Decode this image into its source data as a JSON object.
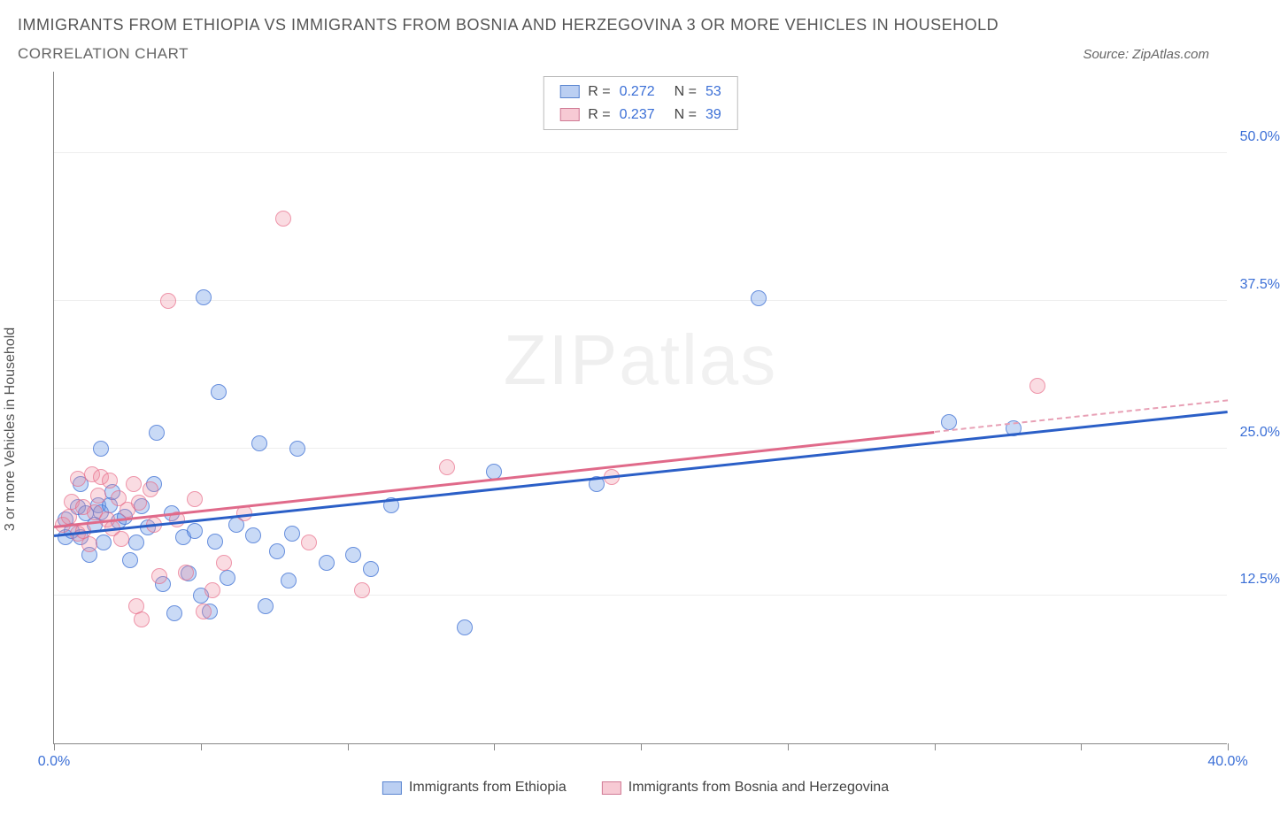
{
  "title": "IMMIGRANTS FROM ETHIOPIA VS IMMIGRANTS FROM BOSNIA AND HERZEGOVINA 3 OR MORE VEHICLES IN HOUSEHOLD",
  "subtitle": "CORRELATION CHART",
  "source_label": "Source: ZipAtlas.com",
  "y_axis_label": "3 or more Vehicles in Household",
  "watermark_a": "ZIP",
  "watermark_b": "atlas",
  "chart": {
    "type": "scatter",
    "xlim": [
      0,
      40
    ],
    "ylim": [
      0,
      57
    ],
    "x_ticks": [
      0,
      5,
      10,
      15,
      20,
      25,
      30,
      35,
      40
    ],
    "x_tick_labels": {
      "0": "0.0%",
      "40": "40.0%"
    },
    "y_ticks": [
      12.5,
      25.0,
      37.5,
      50.0
    ],
    "y_tick_labels": [
      "12.5%",
      "25.0%",
      "37.5%",
      "50.0%"
    ],
    "grid_color": "#eeeeee",
    "axis_color": "#888888",
    "background_color": "#ffffff",
    "marker_radius": 9,
    "series": [
      {
        "key": "blue",
        "name": "Immigrants from Ethiopia",
        "fill": "rgba(100,150,230,0.35)",
        "stroke": "rgba(60,110,210,0.7)",
        "trend_color": "#2b5fc7",
        "R": "0.272",
        "N": "53",
        "trend": {
          "x1": 0,
          "y1": 17.5,
          "x2": 40,
          "y2": 28.0,
          "solid_to_x": 40
        },
        "points": [
          [
            0.4,
            19.0
          ],
          [
            0.4,
            17.5
          ],
          [
            0.6,
            18.0
          ],
          [
            0.8,
            20.0
          ],
          [
            0.9,
            22.0
          ],
          [
            0.9,
            17.5
          ],
          [
            1.1,
            19.5
          ],
          [
            1.2,
            16.0
          ],
          [
            1.4,
            18.5
          ],
          [
            1.5,
            20.2
          ],
          [
            1.6,
            25.0
          ],
          [
            1.7,
            17.0
          ],
          [
            1.6,
            19.6
          ],
          [
            1.9,
            20.2
          ],
          [
            2.0,
            21.3
          ],
          [
            2.2,
            18.8
          ],
          [
            2.4,
            19.2
          ],
          [
            2.6,
            15.5
          ],
          [
            2.8,
            17.0
          ],
          [
            3.0,
            20.1
          ],
          [
            3.2,
            18.3
          ],
          [
            3.4,
            22.0
          ],
          [
            3.5,
            26.3
          ],
          [
            3.7,
            13.5
          ],
          [
            4.0,
            19.5
          ],
          [
            4.1,
            11.0
          ],
          [
            4.4,
            17.5
          ],
          [
            4.6,
            14.4
          ],
          [
            4.8,
            18.0
          ],
          [
            5.0,
            12.5
          ],
          [
            5.3,
            11.2
          ],
          [
            5.5,
            17.1
          ],
          [
            5.6,
            29.8
          ],
          [
            5.9,
            14.0
          ],
          [
            6.2,
            18.5
          ],
          [
            5.1,
            37.8
          ],
          [
            6.8,
            17.6
          ],
          [
            7.0,
            25.4
          ],
          [
            7.2,
            11.6
          ],
          [
            7.6,
            16.3
          ],
          [
            8.0,
            13.8
          ],
          [
            8.3,
            25.0
          ],
          [
            8.1,
            17.8
          ],
          [
            9.3,
            15.3
          ],
          [
            10.2,
            16.0
          ],
          [
            10.8,
            14.8
          ],
          [
            11.5,
            20.2
          ],
          [
            14.0,
            9.8
          ],
          [
            15.0,
            23.0
          ],
          [
            18.5,
            22.0
          ],
          [
            24.0,
            37.7
          ],
          [
            30.5,
            27.2
          ],
          [
            32.7,
            26.7
          ]
        ]
      },
      {
        "key": "pink",
        "name": "Immigrants from Bosnia and Herzegovina",
        "fill": "rgba(240,140,160,0.3)",
        "stroke": "rgba(230,100,130,0.6)",
        "trend_color": "#e06a8a",
        "R": "0.237",
        "N": "39",
        "trend": {
          "x1": 0,
          "y1": 18.3,
          "x2": 40,
          "y2": 29.0,
          "solid_to_x": 30
        },
        "points": [
          [
            0.3,
            18.5
          ],
          [
            0.5,
            19.2
          ],
          [
            0.6,
            20.5
          ],
          [
            0.8,
            17.8
          ],
          [
            0.8,
            22.4
          ],
          [
            1.0,
            20.0
          ],
          [
            1.0,
            18.0
          ],
          [
            1.2,
            16.9
          ],
          [
            1.3,
            22.8
          ],
          [
            1.4,
            19.6
          ],
          [
            1.5,
            21.0
          ],
          [
            1.6,
            22.6
          ],
          [
            1.8,
            19.0
          ],
          [
            1.9,
            22.3
          ],
          [
            2.0,
            18.2
          ],
          [
            2.2,
            20.8
          ],
          [
            2.3,
            17.3
          ],
          [
            2.5,
            19.8
          ],
          [
            2.7,
            22.0
          ],
          [
            2.8,
            11.6
          ],
          [
            2.9,
            20.4
          ],
          [
            3.0,
            10.5
          ],
          [
            3.3,
            21.5
          ],
          [
            3.4,
            18.5
          ],
          [
            3.6,
            14.2
          ],
          [
            3.9,
            37.5
          ],
          [
            4.2,
            19.0
          ],
          [
            4.5,
            14.5
          ],
          [
            4.8,
            20.7
          ],
          [
            5.1,
            11.2
          ],
          [
            5.4,
            13.0
          ],
          [
            5.8,
            15.3
          ],
          [
            7.8,
            44.5
          ],
          [
            6.5,
            19.5
          ],
          [
            8.7,
            17.0
          ],
          [
            10.5,
            13.0
          ],
          [
            13.4,
            23.4
          ],
          [
            19.0,
            22.6
          ],
          [
            33.5,
            30.3
          ]
        ]
      }
    ]
  },
  "legend_top_rows": [
    {
      "swatch": "blue",
      "r": "0.272",
      "n": "53"
    },
    {
      "swatch": "pink",
      "r": "0.237",
      "n": "39"
    }
  ],
  "bottom_legend": [
    {
      "swatch": "blue",
      "label": "Immigrants from Ethiopia"
    },
    {
      "swatch": "pink",
      "label": "Immigrants from Bosnia and Herzegovina"
    }
  ]
}
